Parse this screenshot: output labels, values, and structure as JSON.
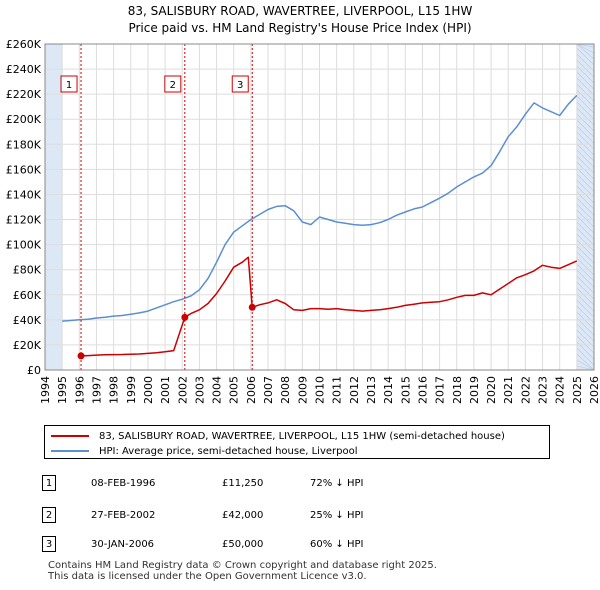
{
  "title": {
    "line1": "83, SALISBURY ROAD, WAVERTREE, LIVERPOOL, L15 1HW",
    "line2": "Price paid vs. HM Land Registry's House Price Index (HPI)"
  },
  "chart_data": {
    "type": "line",
    "xlabel": "",
    "ylabel": "",
    "xlim": [
      1994,
      2026
    ],
    "ylim": [
      0,
      260000
    ],
    "x_ticks": [
      "1994",
      "1995",
      "1996",
      "1997",
      "1998",
      "1999",
      "2000",
      "2001",
      "2002",
      "2003",
      "2004",
      "2005",
      "2006",
      "2007",
      "2008",
      "2009",
      "2010",
      "2011",
      "2012",
      "2013",
      "2014",
      "2015",
      "2016",
      "2017",
      "2018",
      "2019",
      "2020",
      "2021",
      "2022",
      "2023",
      "2024",
      "2025",
      "2026"
    ],
    "y_ticks": [
      "£0",
      "£20K",
      "£40K",
      "£60K",
      "£80K",
      "£100K",
      "£120K",
      "£140K",
      "£160K",
      "£180K",
      "£200K",
      "£220K",
      "£240K",
      "£260K"
    ],
    "grid": true,
    "colors": {
      "property": "#cc0000",
      "hpi": "#5b8fd1",
      "shade": "#dde8f7"
    },
    "series": [
      {
        "name": "83, SALISBURY ROAD, WAVERTREE, LIVERPOOL, L15 1HW (semi-detached house)",
        "color": "#cc0000",
        "x": [
          1996.1,
          1996.5,
          1997.0,
          1997.5,
          1998.0,
          1998.5,
          1999.0,
          1999.5,
          2000.0,
          2000.5,
          2001.0,
          2001.5,
          2002.15,
          2002.5,
          2003.0,
          2003.5,
          2004.0,
          2004.5,
          2005.0,
          2005.5,
          2005.85,
          2006.08,
          2006.5,
          2007.0,
          2007.5,
          2008.0,
          2008.5,
          2009.0,
          2009.5,
          2010.0,
          2010.5,
          2011.0,
          2011.5,
          2012.0,
          2012.5,
          2013.0,
          2013.5,
          2014.0,
          2014.5,
          2015.0,
          2015.5,
          2016.0,
          2016.5,
          2017.0,
          2017.5,
          2018.0,
          2018.5,
          2019.0,
          2019.5,
          2020.0,
          2020.5,
          2021.0,
          2021.5,
          2022.0,
          2022.5,
          2023.0,
          2023.5,
          2024.0,
          2024.5,
          2025.0
        ],
        "y": [
          11250,
          11500,
          11900,
          12100,
          12300,
          12400,
          12600,
          12800,
          13200,
          13800,
          14500,
          15500,
          42000,
          45000,
          48000,
          53000,
          61000,
          71000,
          82000,
          86000,
          90000,
          50000,
          52000,
          53500,
          56000,
          53000,
          48000,
          47500,
          49000,
          49000,
          48500,
          49000,
          48000,
          47500,
          47000,
          47500,
          48000,
          49000,
          50000,
          51500,
          52500,
          53500,
          54000,
          54500,
          56000,
          58000,
          59500,
          59500,
          61500,
          60000,
          64500,
          69000,
          73500,
          76000,
          79000,
          83500,
          82000,
          81000,
          84000,
          87000
        ]
      },
      {
        "name": "HPI: Average price, semi-detached house, Liverpool",
        "color": "#5b8fd1",
        "x": [
          1995.0,
          1995.5,
          1996.0,
          1996.5,
          1997.0,
          1997.5,
          1998.0,
          1998.5,
          1999.0,
          1999.5,
          2000.0,
          2000.5,
          2001.0,
          2001.5,
          2002.0,
          2002.5,
          2003.0,
          2003.5,
          2004.0,
          2004.5,
          2005.0,
          2005.5,
          2006.0,
          2006.5,
          2007.0,
          2007.5,
          2008.0,
          2008.5,
          2009.0,
          2009.5,
          2010.0,
          2010.5,
          2011.0,
          2011.5,
          2012.0,
          2012.5,
          2013.0,
          2013.5,
          2014.0,
          2014.5,
          2015.0,
          2015.5,
          2016.0,
          2016.5,
          2017.0,
          2017.5,
          2018.0,
          2018.5,
          2019.0,
          2019.5,
          2020.0,
          2020.5,
          2021.0,
          2021.5,
          2022.0,
          2022.5,
          2023.0,
          2023.5,
          2024.0,
          2024.5,
          2025.0
        ],
        "y": [
          39000,
          39500,
          40000,
          40500,
          41500,
          42000,
          43000,
          43500,
          44500,
          45500,
          47000,
          49500,
          52000,
          54500,
          56500,
          59000,
          64000,
          73000,
          86000,
          100000,
          110000,
          115000,
          120000,
          124000,
          128000,
          130500,
          131000,
          127000,
          118000,
          116000,
          122000,
          120000,
          118000,
          117000,
          116000,
          115500,
          116000,
          117500,
          120000,
          123500,
          126000,
          128500,
          130000,
          133500,
          137000,
          141000,
          146000,
          150000,
          154000,
          157000,
          163000,
          174000,
          186000,
          194000,
          204000,
          213000,
          209000,
          206000,
          203000,
          212000,
          219000
        ]
      }
    ],
    "annotations": [
      {
        "label": "1",
        "x": 1996.1,
        "y": 11250
      },
      {
        "label": "2",
        "x": 2002.15,
        "y": 42000
      },
      {
        "label": "3",
        "x": 2006.08,
        "y": 50000
      }
    ]
  },
  "legend": {
    "items": [
      {
        "label": "83, SALISBURY ROAD, WAVERTREE, LIVERPOOL, L15 1HW (semi-detached house)",
        "color": "#cc0000"
      },
      {
        "label": "HPI: Average price, semi-detached house, Liverpool",
        "color": "#5b8fd1"
      }
    ]
  },
  "sales": [
    {
      "num": "1",
      "date": "08-FEB-1996",
      "price": "£11,250",
      "hpi": "72% ↓ HPI"
    },
    {
      "num": "2",
      "date": "27-FEB-2002",
      "price": "£42,000",
      "hpi": "25% ↓ HPI"
    },
    {
      "num": "3",
      "date": "30-JAN-2006",
      "price": "£50,000",
      "hpi": "60% ↓ HPI"
    }
  ],
  "footer": {
    "line1": "Contains HM Land Registry data © Crown copyright and database right 2025.",
    "line2": "This data is licensed under the Open Government Licence v3.0."
  }
}
